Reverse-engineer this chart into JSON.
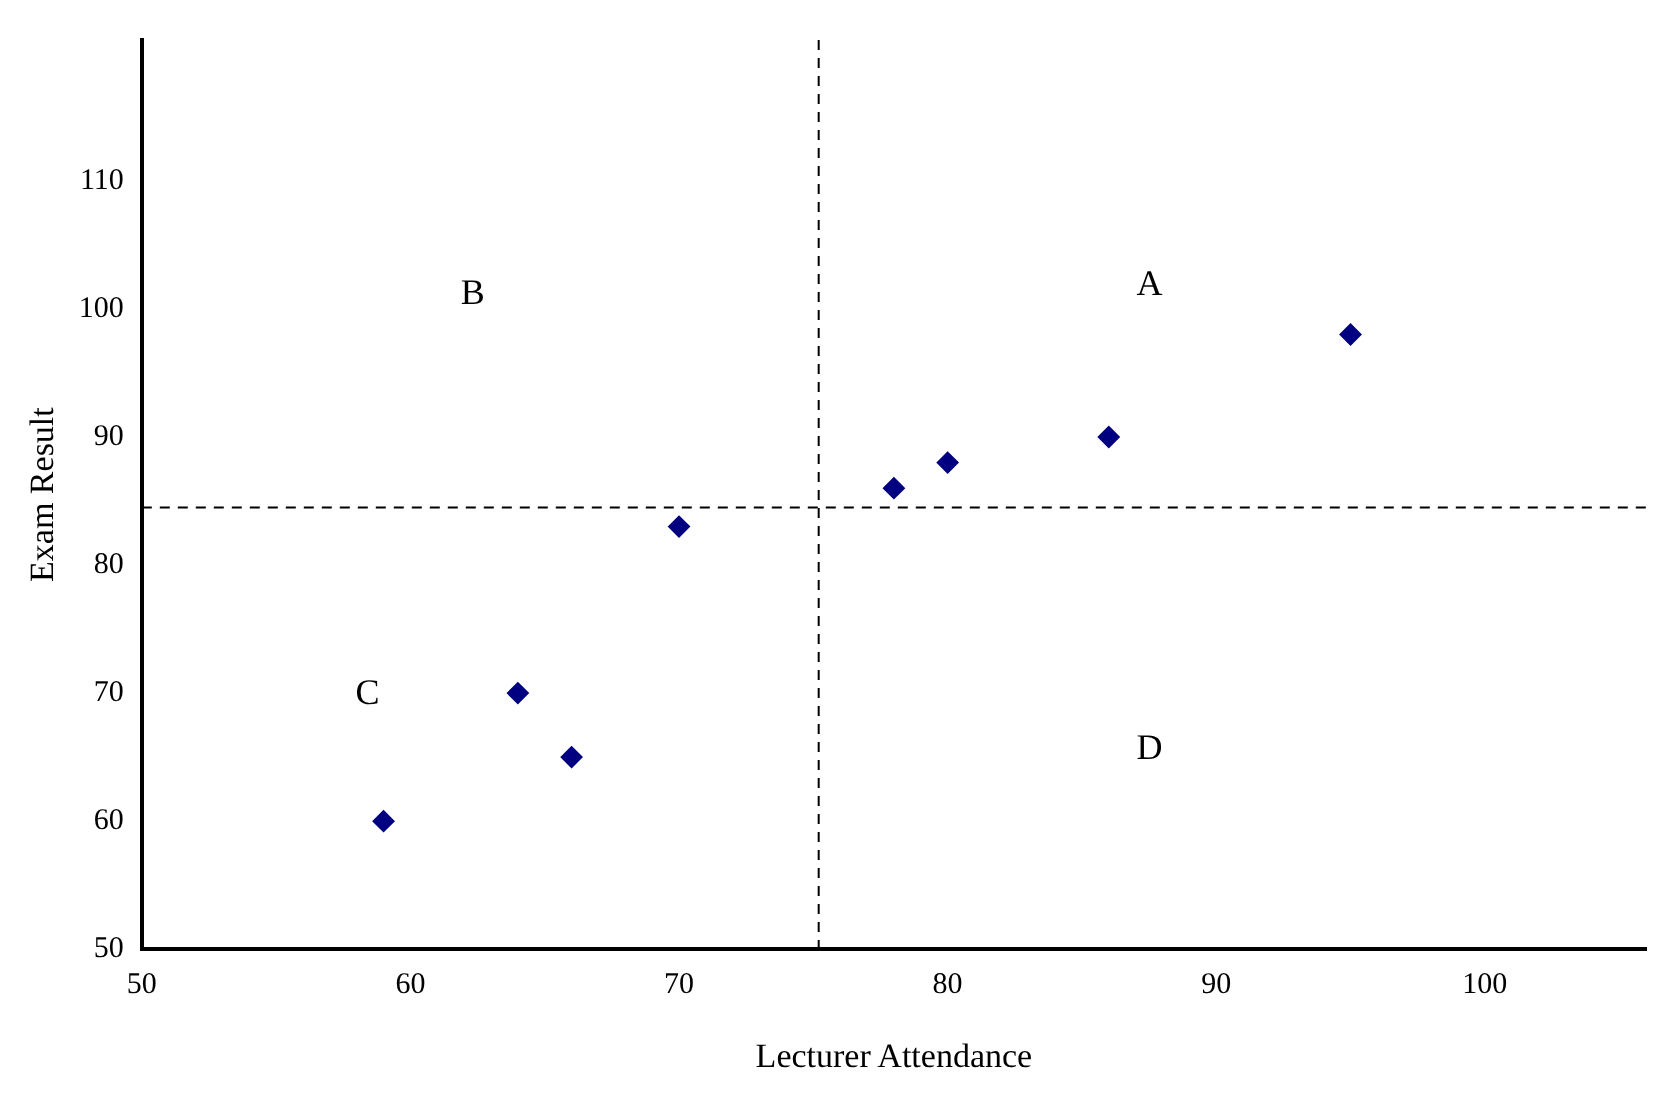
{
  "chart_data": {
    "type": "scatter",
    "xlabel": "Lecturer Attendance",
    "ylabel": "Exam Result",
    "x": [
      59,
      64,
      66,
      70,
      78,
      80,
      86,
      95
    ],
    "values": [
      60,
      70,
      65,
      83,
      86,
      88,
      90,
      98
    ],
    "color": "#000080",
    "marker": "diamond",
    "xlim": [
      50,
      106
    ],
    "xticks": [
      50,
      60,
      70,
      80,
      90,
      100
    ],
    "ylim": [
      50,
      121
    ],
    "yticks": [
      50,
      60,
      70,
      80,
      90,
      100,
      110
    ],
    "grid": false,
    "legend": false,
    "ref_lines": [
      {
        "axis": "x",
        "value": 75.2,
        "line_style": "dashed",
        "color": "#000000"
      },
      {
        "axis": "y",
        "value": 84.5,
        "line_style": "dashed",
        "color": "#000000"
      }
    ],
    "annotations": [
      "A",
      "B",
      "C",
      "D"
    ]
  }
}
